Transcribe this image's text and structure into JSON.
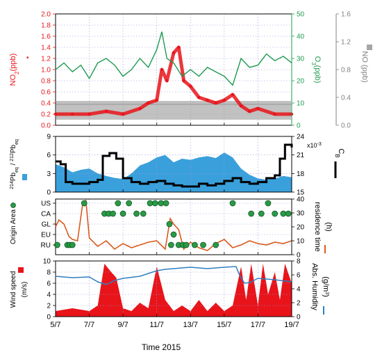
{
  "time_axis": {
    "xlabel": "Time 2015",
    "tick_labels": [
      "5/7",
      "7/7",
      "9/7",
      "11/7",
      "13/7",
      "15/7",
      "17/7",
      "19/7"
    ],
    "range_days": [
      5,
      19
    ]
  },
  "colors": {
    "no2": "#e8141a",
    "no": "#a6a6a6",
    "o3": "#1d9a50",
    "pb": "#3aa0dc",
    "cb": "#000000",
    "origin": "#2a9a45",
    "residence": "#d95a1a",
    "wind": "#e8141a",
    "humidity": "#2d7fc1",
    "grid": "#9999dd"
  },
  "chart_data": [
    {
      "type": "line",
      "panel": "gases",
      "series": [
        {
          "name": "NO2",
          "axis_label": "NO2(ppb)",
          "marker": "•",
          "x": [
            5.0,
            6.0,
            7.0,
            8.0,
            9.0,
            10.0,
            10.5,
            11.0,
            11.3,
            11.6,
            12.0,
            12.3,
            12.6,
            13.0,
            13.5,
            14.0,
            14.5,
            15.0,
            15.5,
            16.0,
            16.5,
            17.0,
            18.0,
            19.0
          ],
          "values": [
            0.2,
            0.2,
            0.2,
            0.25,
            0.2,
            0.3,
            0.4,
            0.45,
            1.0,
            0.8,
            1.3,
            1.4,
            0.8,
            0.7,
            0.5,
            0.45,
            0.4,
            0.45,
            0.55,
            0.35,
            0.25,
            0.3,
            0.2,
            0.2
          ],
          "ylim": [
            0.0,
            2.0
          ]
        },
        {
          "name": "O3",
          "axis_label": "O3(ppb)",
          "x": [
            5.0,
            5.5,
            6.0,
            6.5,
            7.0,
            7.5,
            8.0,
            8.5,
            9.0,
            9.5,
            10.0,
            10.5,
            11.0,
            11.3,
            11.6,
            12.0,
            12.5,
            13.0,
            13.5,
            14.0,
            14.5,
            15.0,
            15.5,
            16.0,
            16.5,
            17.0,
            17.5,
            18.0,
            18.5,
            19.0
          ],
          "values": [
            25,
            28,
            24,
            27,
            21,
            28,
            30,
            27,
            22,
            25,
            30,
            26,
            34,
            42,
            30,
            28,
            22,
            25,
            22,
            26,
            24,
            22,
            18,
            30,
            26,
            27,
            32,
            29,
            31,
            28
          ],
          "ylim": [
            0,
            50
          ]
        },
        {
          "name": "NO",
          "axis_label": "NO (ppb)",
          "x": [
            5.0,
            19.0
          ],
          "values": [
            0.3,
            0.3
          ],
          "ylim": [
            0.0,
            1.6
          ]
        }
      ],
      "left_ticks": [
        "0.0",
        "0.2",
        "0.4",
        "0.6",
        "0.8",
        "1.0",
        "1.2",
        "1.4",
        "1.6",
        "1.8",
        "2.0"
      ],
      "o3_ticks": [
        "0",
        "10",
        "20",
        "30",
        "40",
        "50"
      ],
      "no_ticks": [
        "0.0",
        "0.4",
        "0.8",
        "1.2",
        "1.6"
      ]
    },
    {
      "type": "area",
      "panel": "radon",
      "series": [
        {
          "name": "214Pb/212Pb",
          "axis_label_main": "Pb",
          "x": [
            5.0,
            5.5,
            6.0,
            6.5,
            7.0,
            7.5,
            8.0,
            8.5,
            9.0,
            9.5,
            10.0,
            10.5,
            11.0,
            11.5,
            12.0,
            12.5,
            13.0,
            13.5,
            14.0,
            14.5,
            15.0,
            15.5,
            16.0,
            16.5,
            17.0,
            17.5,
            18.0,
            18.5,
            19.0
          ],
          "values": [
            4.5,
            4.0,
            3.2,
            3.6,
            3.8,
            3.0,
            2.6,
            2.3,
            2.1,
            3.0,
            4.3,
            4.8,
            5.6,
            6.0,
            4.8,
            5.4,
            5.2,
            5.6,
            5.8,
            5.5,
            6.4,
            5.6,
            3.8,
            2.8,
            2.2,
            2.0,
            2.2,
            2.6,
            2.4
          ],
          "ylim": [
            0,
            9
          ]
        },
        {
          "name": "CB",
          "axis_label": "CB",
          "x": [
            5.0,
            5.3,
            5.6,
            6.0,
            6.5,
            7.0,
            7.5,
            7.8,
            8.2,
            8.6,
            9.0,
            9.5,
            10.0,
            10.5,
            11.0,
            11.5,
            12.0,
            12.5,
            13.0,
            13.5,
            14.0,
            14.5,
            15.0,
            15.5,
            16.0,
            16.5,
            17.0,
            17.5,
            18.0,
            18.3,
            18.6,
            19.0
          ],
          "values": [
            20.5,
            20.0,
            16.8,
            16.5,
            16.5,
            16.8,
            17.2,
            21.5,
            22.0,
            21.0,
            17.5,
            16.8,
            16.5,
            16.8,
            17.0,
            16.5,
            16.2,
            16.0,
            16.0,
            16.5,
            16.2,
            16.5,
            17.0,
            17.5,
            16.8,
            16.5,
            16.8,
            17.5,
            18.0,
            21.0,
            23.5,
            23.0
          ],
          "ylim": [
            15,
            25
          ]
        }
      ],
      "left_ticks": [
        "0",
        "3",
        "6",
        "9"
      ],
      "right_ticks": [
        "15",
        "18",
        "21",
        "24"
      ],
      "right_exponent": "x10",
      "right_exponent_power": "-3"
    },
    {
      "type": "scatter",
      "panel": "origin",
      "categories": [
        "RU",
        "EU",
        "GL",
        "CA",
        "US"
      ],
      "ylabel": "Origin Area",
      "points": [
        {
          "x": 5.1,
          "cat": "RU"
        },
        {
          "x": 5.7,
          "cat": "RU"
        },
        {
          "x": 5.85,
          "cat": "RU"
        },
        {
          "x": 6.0,
          "cat": "RU"
        },
        {
          "x": 6.7,
          "cat": "US"
        },
        {
          "x": 7.9,
          "cat": "CA"
        },
        {
          "x": 8.15,
          "cat": "CA"
        },
        {
          "x": 8.4,
          "cat": "CA"
        },
        {
          "x": 8.7,
          "cat": "US"
        },
        {
          "x": 9.0,
          "cat": "CA"
        },
        {
          "x": 9.35,
          "cat": "US"
        },
        {
          "x": 9.8,
          "cat": "CA"
        },
        {
          "x": 10.2,
          "cat": "CA"
        },
        {
          "x": 10.6,
          "cat": "US"
        },
        {
          "x": 10.9,
          "cat": "US"
        },
        {
          "x": 11.25,
          "cat": "US"
        },
        {
          "x": 11.55,
          "cat": "US"
        },
        {
          "x": 11.75,
          "cat": "GL"
        },
        {
          "x": 11.85,
          "cat": "RU"
        },
        {
          "x": 12.0,
          "cat": "EU"
        },
        {
          "x": 12.3,
          "cat": "RU"
        },
        {
          "x": 12.55,
          "cat": "RU"
        },
        {
          "x": 12.75,
          "cat": "RU"
        },
        {
          "x": 13.25,
          "cat": "RU"
        },
        {
          "x": 13.75,
          "cat": "RU"
        },
        {
          "x": 14.5,
          "cat": "RU"
        },
        {
          "x": 15.5,
          "cat": "US"
        },
        {
          "x": 16.6,
          "cat": "CA"
        },
        {
          "x": 17.2,
          "cat": "CA"
        },
        {
          "x": 17.6,
          "cat": "US"
        },
        {
          "x": 18.0,
          "cat": "CA"
        },
        {
          "x": 18.5,
          "cat": "CA"
        },
        {
          "x": 18.8,
          "cat": "CA"
        }
      ],
      "series": [
        {
          "name": "residence time",
          "axis_label": "residence time",
          "unit": "(h)",
          "x": [
            5.0,
            5.2,
            5.5,
            5.8,
            6.0,
            6.3,
            6.6,
            6.8,
            7.0,
            7.5,
            8.0,
            8.5,
            9.0,
            9.5,
            10.0,
            10.5,
            11.0,
            11.5,
            11.8,
            12.0,
            12.3,
            12.6,
            13.0,
            13.5,
            14.0,
            14.5,
            15.0,
            15.5,
            16.0,
            16.5,
            17.0,
            17.5,
            18.0,
            18.5,
            19.0
          ],
          "values": [
            20,
            25,
            22,
            13,
            11,
            10,
            36,
            39,
            12,
            6,
            10,
            4,
            8,
            5,
            7,
            9,
            10,
            4,
            26,
            22,
            18,
            4,
            9,
            5,
            3,
            8,
            11,
            5,
            7,
            10,
            8,
            7,
            9,
            8,
            10
          ],
          "ylim": [
            0,
            40
          ]
        }
      ],
      "right_ticks": [
        "0",
        "10",
        "20",
        "30",
        "40"
      ]
    },
    {
      "type": "area",
      "panel": "meteo",
      "series": [
        {
          "name": "Wind speed",
          "axis_label": "Wind speed",
          "unit": "(m/s)",
          "x": [
            5.0,
            6.0,
            7.0,
            7.5,
            7.9,
            8.3,
            8.6,
            9.0,
            9.5,
            10.0,
            10.5,
            11.0,
            11.5,
            12.0,
            12.5,
            13.0,
            13.5,
            14.0,
            14.5,
            15.0,
            15.5,
            16.0,
            16.3,
            16.6,
            17.0,
            17.3,
            17.6,
            18.0,
            18.3,
            18.6,
            19.0
          ],
          "values": [
            1.0,
            1.5,
            1.0,
            2.0,
            9.5,
            8.0,
            7.0,
            1.5,
            1.0,
            2.5,
            1.5,
            9.0,
            3.0,
            1.0,
            2.0,
            1.0,
            3.0,
            1.0,
            2.5,
            1.0,
            2.0,
            9.0,
            3.0,
            9.5,
            2.0,
            9.5,
            4.0,
            8.0,
            3.0,
            9.5,
            6.0
          ],
          "ylim": [
            0,
            10
          ]
        },
        {
          "name": "Abs. Humidity",
          "axis_label": "Abs. Humidity",
          "unit": "(g/m3)",
          "x": [
            5.0,
            6.0,
            7.0,
            7.5,
            8.0,
            8.5,
            9.0,
            10.0,
            11.0,
            11.5,
            12.0,
            12.5,
            13.0,
            13.5,
            14.0,
            15.0,
            15.7,
            15.9,
            16.2,
            16.5,
            17.0,
            18.0,
            19.0
          ],
          "values": [
            5.8,
            5.6,
            5.7,
            5.0,
            4.6,
            5.2,
            5.5,
            5.8,
            6.6,
            6.8,
            6.9,
            7.0,
            7.1,
            7.0,
            6.9,
            7.1,
            7.2,
            6.0,
            4.8,
            4.9,
            5.5,
            5.3,
            5.0
          ],
          "ylim": [
            0,
            8
          ]
        }
      ],
      "left_ticks": [
        "0",
        "2",
        "4",
        "6",
        "8",
        "10"
      ],
      "right_ticks": [
        "0",
        "2",
        "4",
        "6",
        "8"
      ]
    }
  ]
}
